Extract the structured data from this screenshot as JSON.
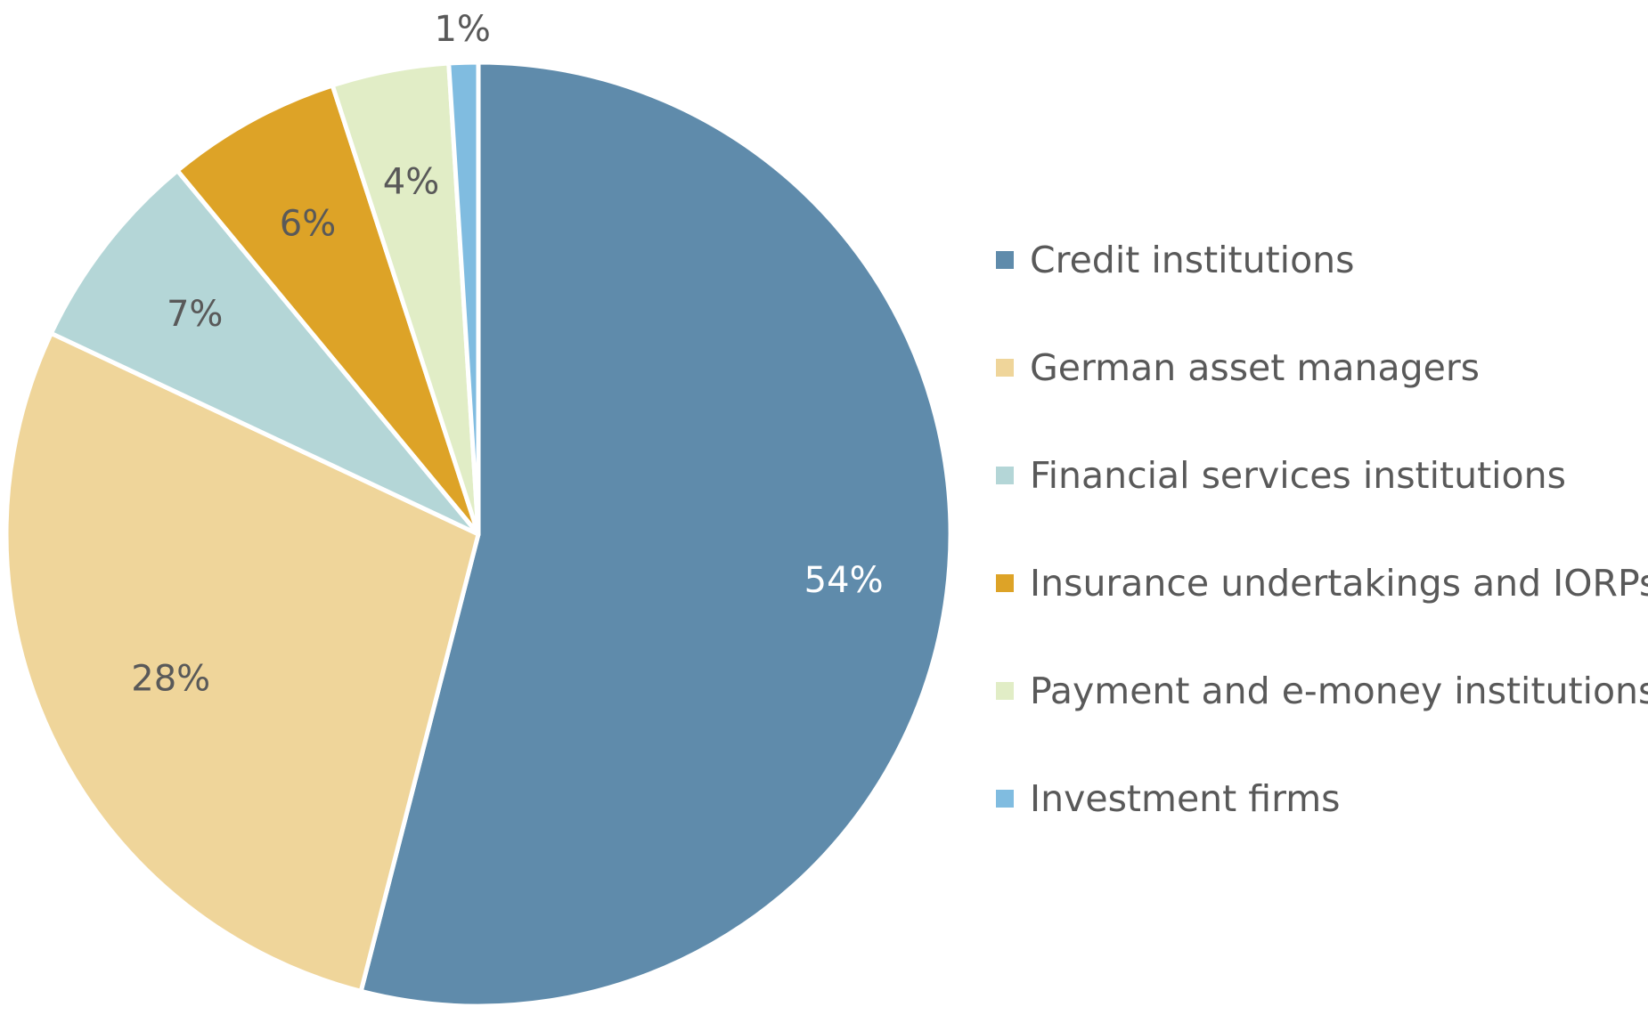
{
  "chart_data": {
    "type": "pie",
    "title": "",
    "legend_position": "right",
    "slices": [
      {
        "label": "Credit institutions",
        "value": 54,
        "display": "54%",
        "color": "#5f8bab"
      },
      {
        "label": "German asset managers",
        "value": 28,
        "display": "28%",
        "color": "#efd59a"
      },
      {
        "label": "Financial services institutions",
        "value": 7,
        "display": "7%",
        "color": "#b4d6d7"
      },
      {
        "label": "Insurance undertakings and IORPs",
        "value": 6,
        "display": "6%",
        "color": "#dda327"
      },
      {
        "label": "Payment and e-money institutions",
        "value": 4,
        "display": "4%",
        "color": "#e1edc6"
      },
      {
        "label": "Investment firms",
        "value": 1,
        "display": "1%",
        "color": "#80bce0"
      }
    ],
    "label_color": "#595959",
    "inverse_label_color": "#ffffff"
  }
}
